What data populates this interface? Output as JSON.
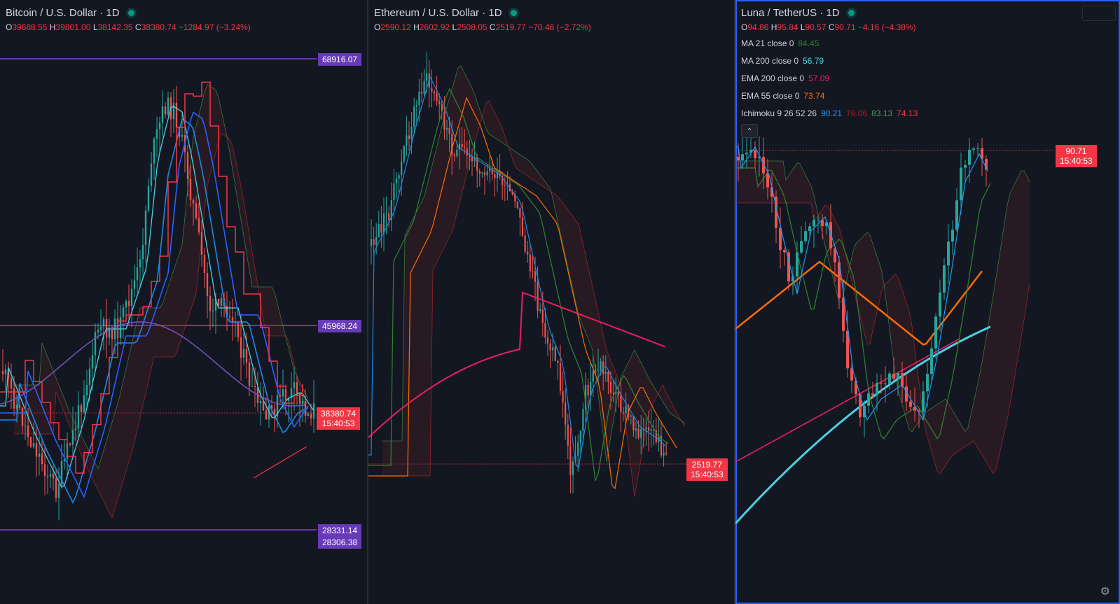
{
  "colors": {
    "background": "#131722",
    "up": "#26a69a",
    "down": "#ef5350",
    "purple_level": "#673ab7",
    "ma21": "#2e7d32",
    "ma200": "#4dd0e1",
    "ema200": "#e91e63",
    "ema55": "#ff6d00",
    "tenkan": "#2196f3",
    "kijun": "#b71c1c"
  },
  "panes": [
    {
      "title": "Bitcoin / U.S. Dollar · 1D",
      "ohlc": {
        "o": "39688.55",
        "h": "39801.00",
        "l": "38142.35",
        "c": "38380.74",
        "chg": "−1284.97 (−3.24%)"
      },
      "levels": [
        "68916.07",
        "45968.24",
        "28331.14",
        "28306.38"
      ],
      "price_label": "38380.74",
      "countdown": "15:40:53"
    },
    {
      "title": "Ethereum / U.S. Dollar · 1D",
      "ohlc": {
        "o": "2590.12",
        "h": "2602.92",
        "l": "2508.05",
        "c": "2519.77",
        "chg": "−70.46 (−2.72%)"
      },
      "price_label": "2519.77",
      "countdown": "15:40:53"
    },
    {
      "title": "Luna / TetherUS · 1D",
      "ohlc": {
        "o": "94.86",
        "h": "95.84",
        "l": "90.57",
        "c": "90.71",
        "chg": "−4.16 (−4.38%)"
      },
      "indicators": [
        {
          "label": "MA 21 close 0",
          "values": [
            "84.45"
          ],
          "colors": [
            "#2e7d32"
          ]
        },
        {
          "label": "MA 200 close 0",
          "values": [
            "56.79"
          ],
          "colors": [
            "#4dd0e1"
          ]
        },
        {
          "label": "EMA 200 close 0",
          "values": [
            "57.09"
          ],
          "colors": [
            "#e91e63"
          ]
        },
        {
          "label": "EMA 55 close 0",
          "values": [
            "73.74"
          ],
          "colors": [
            "#ff6d00"
          ]
        },
        {
          "label": "Ichimoku 9 26 52 26",
          "values": [
            "90.21",
            "76.06",
            "83.13",
            "74.13"
          ],
          "colors": [
            "#2196f3",
            "#b71c1c",
            "#43a047",
            "#f23645"
          ]
        }
      ],
      "price_label": "90.71",
      "countdown": "15:40:53"
    }
  ],
  "chart_data": [
    {
      "type": "candlestick",
      "symbol": "Bitcoin / U.S. Dollar",
      "interval": "1D",
      "open": 39688.55,
      "high": 39801.0,
      "low": 38142.35,
      "close": 38380.74,
      "horizontal_levels": [
        68916.07,
        45968.24,
        28331.14,
        28306.38
      ],
      "last_price": 38380.74
    },
    {
      "type": "candlestick",
      "symbol": "Ethereum / U.S. Dollar",
      "interval": "1D",
      "open": 2590.12,
      "high": 2602.92,
      "low": 2508.05,
      "close": 2519.77,
      "last_price": 2519.77
    },
    {
      "type": "candlestick",
      "symbol": "Luna / TetherUS",
      "interval": "1D",
      "open": 94.86,
      "high": 95.84,
      "low": 90.57,
      "close": 90.71,
      "indicators": {
        "ma21": 84.45,
        "ma200": 56.79,
        "ema200": 57.09,
        "ema55": 73.74,
        "ichimoku": [
          90.21,
          76.06,
          83.13,
          74.13
        ]
      },
      "last_price": 90.71
    }
  ]
}
